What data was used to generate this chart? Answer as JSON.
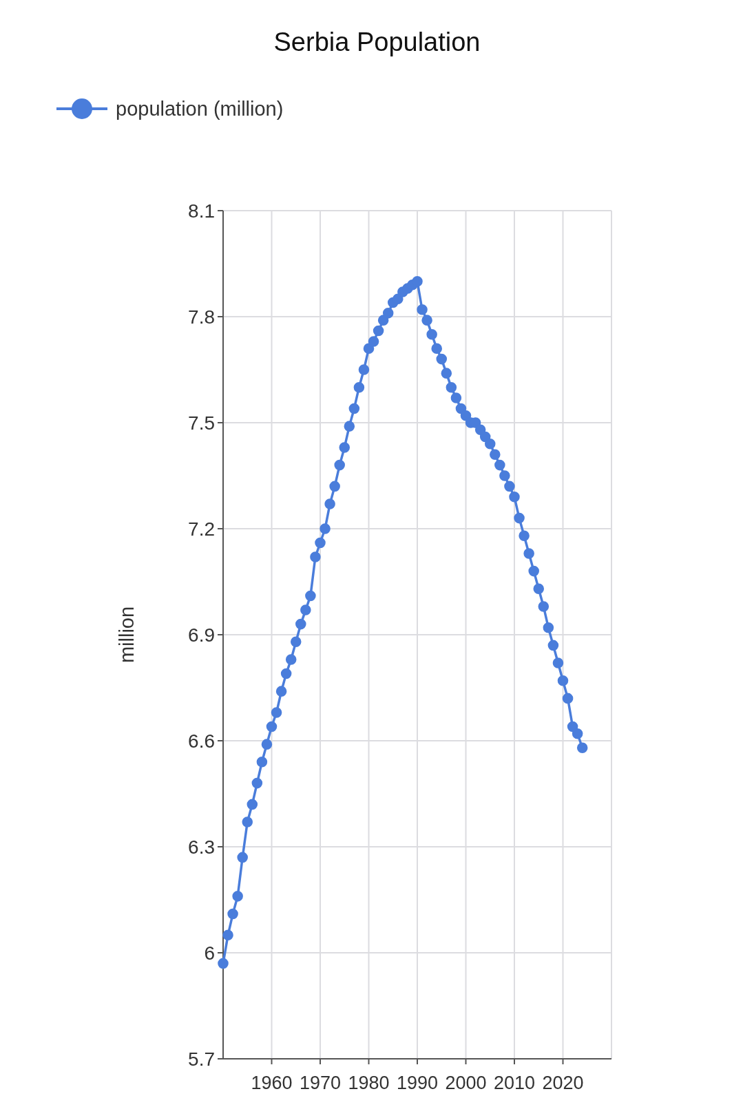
{
  "chart_data": {
    "type": "line",
    "title": "Serbia Population",
    "ylabel": "million",
    "x": [
      1950,
      1951,
      1952,
      1953,
      1954,
      1955,
      1956,
      1957,
      1958,
      1959,
      1960,
      1961,
      1962,
      1963,
      1964,
      1965,
      1966,
      1967,
      1968,
      1969,
      1970,
      1971,
      1972,
      1973,
      1974,
      1975,
      1976,
      1977,
      1978,
      1979,
      1980,
      1981,
      1982,
      1983,
      1984,
      1985,
      1986,
      1987,
      1988,
      1989,
      1990,
      1991,
      1992,
      1993,
      1994,
      1995,
      1996,
      1997,
      1998,
      1999,
      2000,
      2001,
      2002,
      2003,
      2004,
      2005,
      2006,
      2007,
      2008,
      2009,
      2010,
      2011,
      2012,
      2013,
      2014,
      2015,
      2016,
      2017,
      2018,
      2019,
      2020,
      2021,
      2022,
      2023,
      2024
    ],
    "series": [
      {
        "name": "population (million)",
        "color": "#4a7ddb",
        "values": [
          5.97,
          6.05,
          6.11,
          6.16,
          6.27,
          6.37,
          6.42,
          6.48,
          6.54,
          6.59,
          6.64,
          6.68,
          6.74,
          6.79,
          6.83,
          6.88,
          6.93,
          6.97,
          7.01,
          7.12,
          7.16,
          7.2,
          7.27,
          7.32,
          7.38,
          7.43,
          7.49,
          7.54,
          7.6,
          7.65,
          7.71,
          7.73,
          7.76,
          7.79,
          7.81,
          7.84,
          7.85,
          7.87,
          7.88,
          7.89,
          7.9,
          7.82,
          7.79,
          7.75,
          7.71,
          7.68,
          7.64,
          7.6,
          7.57,
          7.54,
          7.52,
          7.5,
          7.5,
          7.48,
          7.46,
          7.44,
          7.41,
          7.38,
          7.35,
          7.32,
          7.29,
          7.23,
          7.18,
          7.13,
          7.08,
          7.03,
          6.98,
          6.92,
          6.87,
          6.82,
          6.77,
          6.72,
          6.64,
          6.62,
          6.58
        ]
      }
    ],
    "xlim": [
      1950,
      2030
    ],
    "xticks": [
      1960,
      1970,
      1980,
      1990,
      2000,
      2010,
      2020
    ],
    "ylim": [
      5.7,
      8.1
    ],
    "yticks": [
      5.7,
      6,
      6.3,
      6.6,
      6.9,
      7.2,
      7.5,
      7.8,
      8.1
    ],
    "grid": true,
    "legend": "top left",
    "marker": "circle",
    "line_style": "solid"
  }
}
